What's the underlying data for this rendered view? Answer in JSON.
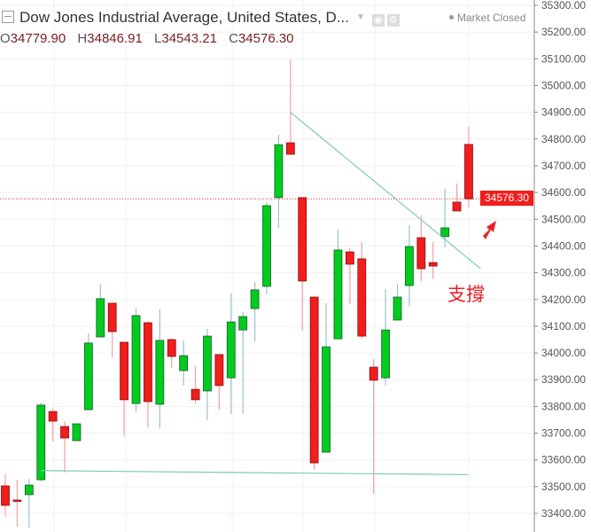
{
  "header": {
    "title": "Dow Jones Industrial Average, United States, D...",
    "status": "Market Closed",
    "ohlc": {
      "o_label": "O",
      "o": "34779.90",
      "h_label": "H",
      "h": "34846.91",
      "l_label": "L",
      "l": "34543.21",
      "c_label": "C",
      "c": "34576.30"
    }
  },
  "annotation": {
    "text": "支撐",
    "color": "#e8202a"
  },
  "last_price_tag": "34576.30",
  "colors": {
    "up": "#00cc1e",
    "down": "#f21d1d",
    "trendline": "#7ec8c0",
    "grid": "#f0f0f0"
  },
  "chart_data": {
    "type": "candlestick",
    "title": "",
    "yaxis": {
      "position": "right",
      "ylim": [
        33350,
        35300
      ],
      "ticks": [
        "35300.00",
        "35200.00",
        "35100.00",
        "35000.00",
        "34900.00",
        "34800.00",
        "34700.00",
        "34600.00",
        "34500.00",
        "34400.00",
        "34300.00",
        "34200.00",
        "34100.00",
        "34000.00",
        "33900.00",
        "33800.00",
        "33700.00",
        "33600.00",
        "33500.00",
        "33400.00"
      ]
    },
    "grid": true,
    "candles": [
      [
        33503,
        33549,
        33387,
        33430
      ],
      [
        33450,
        33526,
        33350,
        33445
      ],
      [
        33470,
        33529,
        33347,
        33506
      ],
      [
        33526,
        33815,
        33520,
        33805
      ],
      [
        33781,
        33791,
        33669,
        33745
      ],
      [
        33725,
        33745,
        33553,
        33682
      ],
      [
        33672,
        33735,
        33672,
        33735
      ],
      [
        33788,
        34073,
        33788,
        34037
      ],
      [
        34060,
        34259,
        34060,
        34203
      ],
      [
        34186,
        34186,
        33984,
        34080
      ],
      [
        34040,
        34040,
        33689,
        33825
      ],
      [
        33811,
        34166,
        33778,
        34140
      ],
      [
        34113,
        34120,
        33722,
        33818
      ],
      [
        33808,
        34163,
        33719,
        34047
      ],
      [
        34050,
        34055,
        33944,
        33987
      ],
      [
        33934,
        34047,
        33878,
        33990
      ],
      [
        33864,
        33951,
        33811,
        33825
      ],
      [
        33858,
        34090,
        33748,
        34063
      ],
      [
        33994,
        33994,
        33788,
        33878
      ],
      [
        33907,
        34222,
        33772,
        34116
      ],
      [
        34086,
        34153,
        33772,
        34136
      ],
      [
        34166,
        34266,
        34043,
        34236
      ],
      [
        34249,
        34564,
        34219,
        34551
      ],
      [
        34581,
        34816,
        34468,
        34779
      ],
      [
        34786,
        35098,
        34743,
        34743
      ],
      [
        34581,
        34581,
        34083,
        34269
      ],
      [
        34209,
        34209,
        33563,
        33589
      ],
      [
        33629,
        34186,
        33629,
        34023
      ],
      [
        34053,
        34461,
        34053,
        34385
      ],
      [
        34378,
        34392,
        34183,
        34332
      ],
      [
        34352,
        34415,
        34053,
        34063
      ],
      [
        33947,
        33977,
        33473,
        33898
      ],
      [
        33907,
        34239,
        33878,
        34086
      ],
      [
        34123,
        34259,
        34123,
        34209
      ],
      [
        34252,
        34478,
        34176,
        34398
      ],
      [
        34431,
        34514,
        34269,
        34315
      ],
      [
        34338,
        34415,
        34276,
        34325
      ],
      [
        34435,
        34614,
        34395,
        34468
      ],
      [
        34564,
        34634,
        34531,
        34531
      ],
      [
        34779.9,
        34846.91,
        34543.21,
        34576.3
      ]
    ],
    "candle_fields": [
      "open",
      "high",
      "low",
      "close"
    ],
    "last_close_line": 34576.3,
    "trendlines": [
      {
        "from": [
          25,
          34900
        ],
        "to": [
          41,
          34315
        ]
      },
      {
        "from": [
          4,
          33560
        ],
        "to": [
          40,
          33545
        ]
      }
    ]
  }
}
